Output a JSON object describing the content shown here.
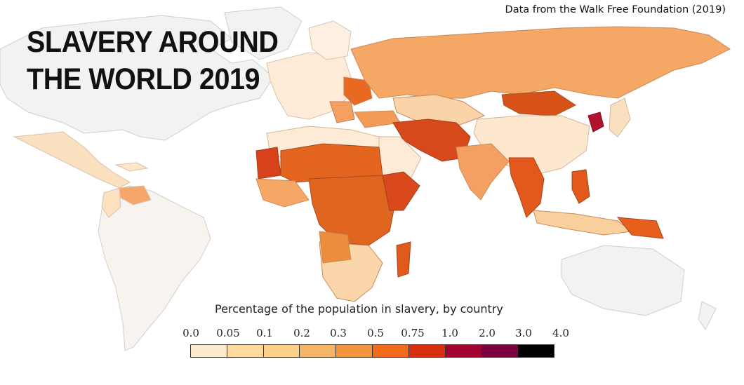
{
  "header": {
    "title_line1": "SLAVERY AROUND",
    "title_line2": "THE WORLD 2019",
    "source": "Data from the Walk Free Foundation (2019)"
  },
  "legend": {
    "title": "Percentage of the population in slavery, by country",
    "ticks": [
      "0.0",
      "0.05",
      "0.1",
      "0.2",
      "0.3",
      "0.5",
      "0.75",
      "1.0",
      "2.0",
      "3.0",
      "4.0"
    ],
    "colors": [
      "#fdebd0",
      "#fddba0",
      "#fcd28a",
      "#f6b469",
      "#f29541",
      "#f26b1c",
      "#d8300e",
      "#a3032e",
      "#7a0040",
      "#000000"
    ]
  },
  "map_colors": {
    "no_data": "#f2f2f0",
    "ocean": "#ffffff",
    "border": "#c9c9c9"
  }
}
